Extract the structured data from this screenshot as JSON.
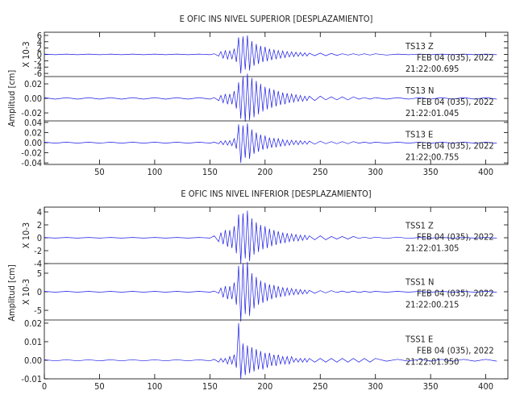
{
  "chart_data": [
    {
      "type": "line",
      "title": "E OFIC INS NIVEL SUPERIOR [DESPLAZAMIENTO]",
      "ylabel": "Amplitud [cm]",
      "color": "#1a1ae6",
      "x": [
        0,
        10,
        20,
        30,
        40,
        50,
        60,
        70,
        80,
        90,
        100,
        110,
        120,
        130,
        140,
        150,
        154,
        158,
        160,
        162,
        164,
        166,
        168,
        170,
        172,
        174,
        176,
        178,
        180,
        182,
        184,
        186,
        188,
        190,
        192,
        194,
        196,
        198,
        200,
        202,
        204,
        206,
        208,
        210,
        212,
        214,
        216,
        218,
        220,
        222,
        224,
        226,
        228,
        230,
        232,
        234,
        236,
        238,
        240,
        245,
        250,
        255,
        260,
        265,
        270,
        275,
        280,
        285,
        290,
        295,
        300,
        310,
        320,
        330,
        340,
        350,
        360,
        370,
        380,
        390,
        400,
        410
      ],
      "xlim": [
        0,
        420
      ],
      "xticks": [
        50,
        100,
        150,
        200,
        250,
        300,
        350,
        400
      ],
      "panels": [
        {
          "station": "TS13   Z",
          "date": "FEB 04 (035), 2022",
          "time": "21:22:00.695",
          "scale": "X 10-3",
          "ylim": [
            -7,
            7
          ],
          "yticks": [
            6,
            4,
            2,
            0,
            -2,
            -4,
            -6
          ],
          "values": [
            0.1,
            -0.1,
            0.1,
            -0.1,
            0.1,
            -0.1,
            0.1,
            -0.1,
            0.1,
            -0.1,
            0.1,
            -0.1,
            0.1,
            -0.1,
            0.1,
            -0.1,
            0.2,
            -0.5,
            0.9,
            -1.2,
            1.2,
            -1.5,
            1.2,
            -1.5,
            1.8,
            -2.4,
            5.4,
            -6,
            5.7,
            -4.8,
            6,
            -5.1,
            4.2,
            -3.6,
            3.3,
            -3,
            2.7,
            -2.4,
            2.4,
            -2.1,
            1.8,
            -1.8,
            1.5,
            -1.5,
            1.2,
            -1.2,
            1.1,
            -1,
            0.9,
            -0.8,
            0.8,
            -0.7,
            0.7,
            -0.6,
            0.6,
            -0.5,
            0.5,
            -0.5,
            0.4,
            -0.4,
            0.4,
            -0.4,
            0.3,
            -0.3,
            0.2,
            -0.2,
            0.2,
            -0.2,
            0.2,
            -0.2,
            0.2,
            -0.2,
            0.1,
            -0.1,
            0.1,
            -0.1,
            0.1,
            -0.1,
            0.1,
            -0.1,
            0.1,
            -0.1
          ]
        },
        {
          "station": "TS13   N",
          "date": "FEB 04 (035), 2022",
          "time": "21:22:01.045",
          "ylim": [
            -0.031,
            0.03
          ],
          "yticks": [
            0.02,
            {
              "value": 0,
              "label": "0.00"
            },
            -0.02
          ],
          "values": [
            0.001,
            -0.001,
            0.001,
            -0.001,
            0.001,
            -0.001,
            0.001,
            -0.001,
            0.001,
            -0.001,
            0.001,
            -0.001,
            0.001,
            -0.001,
            0.001,
            -0.001,
            0.001,
            -0.003,
            0.004,
            -0.006,
            0.006,
            -0.008,
            0.006,
            -0.008,
            0.01,
            -0.014,
            0.022,
            -0.028,
            0.03,
            -0.032,
            0.034,
            -0.03,
            0.028,
            -0.026,
            0.024,
            -0.022,
            0.02,
            -0.018,
            0.016,
            -0.015,
            0.014,
            -0.013,
            0.012,
            -0.011,
            0.01,
            -0.009,
            0.008,
            -0.008,
            0.007,
            -0.006,
            0.006,
            -0.005,
            0.005,
            -0.004,
            0.004,
            -0.004,
            0.003,
            -0.003,
            0.003,
            -0.003,
            0.003,
            -0.002,
            0.002,
            -0.002,
            0.002,
            -0.002,
            0.002,
            -0.001,
            0.001,
            -0.001,
            0.001,
            -0.001,
            0.001,
            -0.001,
            0.001,
            -0.001,
            0.001,
            -0.001,
            0.001,
            -0.001,
            0.001,
            -0.001
          ]
        },
        {
          "station": "TS13   E",
          "date": "FEB 04 (035), 2022",
          "time": "21:22:00.755",
          "ylim": [
            -0.043,
            0.043
          ],
          "yticks": [
            0.04,
            0.02,
            {
              "value": 0,
              "label": "0.00"
            },
            -0.02,
            -0.04
          ],
          "values": [
            0.001,
            -0.001,
            0.001,
            -0.001,
            0.001,
            -0.001,
            0.001,
            -0.001,
            0.001,
            -0.001,
            0.001,
            -0.001,
            0.001,
            -0.001,
            0.001,
            -0.001,
            0.001,
            -0.002,
            0.003,
            -0.004,
            0.004,
            -0.005,
            0.004,
            -0.006,
            0.008,
            -0.012,
            0.036,
            -0.04,
            0.034,
            -0.03,
            0.038,
            -0.032,
            0.026,
            -0.022,
            0.02,
            -0.018,
            0.016,
            -0.014,
            0.014,
            -0.012,
            0.01,
            -0.01,
            0.009,
            -0.009,
            0.008,
            -0.007,
            0.006,
            -0.006,
            0.005,
            -0.005,
            0.005,
            -0.004,
            0.004,
            -0.004,
            0.004,
            -0.003,
            0.003,
            -0.003,
            0.003,
            -0.003,
            0.003,
            -0.002,
            0.002,
            -0.002,
            0.002,
            -0.002,
            0.002,
            -0.001,
            0.001,
            -0.001,
            0.001,
            -0.001,
            0.001,
            -0.001,
            0.001,
            -0.001,
            0.001,
            -0.001,
            0.001,
            -0.001,
            0.001,
            -0.001
          ]
        }
      ]
    },
    {
      "type": "line",
      "title": "E OFIC INS NIVEL INFERIOR [DESPLAZAMIENTO]",
      "ylabel": "Amplitud [cm]",
      "color": "#1a1ae6",
      "x": [
        0,
        10,
        20,
        30,
        40,
        50,
        60,
        70,
        80,
        90,
        100,
        110,
        120,
        130,
        140,
        150,
        154,
        158,
        160,
        162,
        164,
        166,
        168,
        170,
        172,
        174,
        176,
        178,
        180,
        182,
        184,
        186,
        188,
        190,
        192,
        194,
        196,
        198,
        200,
        202,
        204,
        206,
        208,
        210,
        212,
        214,
        216,
        218,
        220,
        222,
        224,
        226,
        228,
        230,
        232,
        234,
        236,
        238,
        240,
        245,
        250,
        255,
        260,
        265,
        270,
        275,
        280,
        285,
        290,
        295,
        300,
        310,
        320,
        330,
        340,
        350,
        360,
        370,
        380,
        390,
        400,
        410
      ],
      "xlim": [
        0,
        420
      ],
      "xticks": [
        0,
        50,
        100,
        150,
        200,
        250,
        300,
        350,
        400
      ],
      "panels": [
        {
          "station": "TSS1   Z",
          "date": "FEB 04 (035), 2022",
          "time": "21:22:01.305",
          "scale": "X 10-3",
          "ylim": [
            -4,
            4.75
          ],
          "yticks": [
            4,
            2,
            0,
            -2,
            -4
          ],
          "values": [
            0.05,
            -0.05,
            0.05,
            -0.05,
            0.05,
            -0.05,
            0.05,
            -0.05,
            0.05,
            -0.05,
            0.05,
            -0.05,
            0.05,
            -0.05,
            0.05,
            -0.05,
            0.3,
            -0.6,
            0.8,
            -1,
            1.2,
            -1.4,
            1.2,
            -1.6,
            1.8,
            -2.4,
            3.6,
            -4,
            3.8,
            -3.2,
            4.2,
            -3.6,
            3,
            -2.6,
            2.4,
            -2.2,
            2,
            -1.8,
            1.8,
            -1.6,
            1.4,
            -1.3,
            1.2,
            -1.1,
            1,
            -0.9,
            0.8,
            -0.8,
            0.7,
            -0.6,
            0.6,
            -0.5,
            0.5,
            -0.5,
            0.4,
            -0.4,
            0.4,
            -0.3,
            0.3,
            -0.3,
            0.3,
            -0.3,
            0.2,
            -0.2,
            0.2,
            -0.2,
            0.2,
            -0.1,
            0.1,
            -0.1,
            0.1,
            -0.1,
            0.1,
            -0.1,
            0.05,
            -0.05,
            0.05,
            -0.05,
            0.05,
            -0.05,
            0.05,
            -0.05
          ]
        },
        {
          "station": "TSS1   N",
          "date": "FEB 04 (035), 2022",
          "time": "21:22:00.215",
          "scale": "X 10-3",
          "ylim": [
            -7.6,
            7.6
          ],
          "yticks": [
            5,
            0,
            -5
          ],
          "values": [
            0.1,
            -0.1,
            0.1,
            -0.1,
            0.1,
            -0.1,
            0.1,
            -0.1,
            0.1,
            -0.1,
            0.1,
            -0.1,
            0.1,
            -0.1,
            0.1,
            -0.1,
            0.2,
            -0.4,
            1,
            -1.5,
            1.5,
            -2,
            1.5,
            -2,
            2.5,
            -3.5,
            7,
            -8,
            7.5,
            -6,
            8,
            -6.5,
            5,
            -4.5,
            4,
            -3.5,
            3,
            -3,
            2.5,
            -2.5,
            2,
            -2,
            1.8,
            -1.6,
            1.5,
            -1.4,
            1.2,
            -1.1,
            1,
            -0.9,
            0.9,
            -0.8,
            0.7,
            -0.7,
            0.6,
            -0.6,
            0.5,
            -0.5,
            0.4,
            -0.4,
            0.3,
            -0.3,
            0.3,
            -0.2,
            0.2,
            -0.2,
            0.2,
            -0.2,
            0.1,
            -0.1,
            0.1,
            -0.1,
            0.1,
            -0.1,
            0.1,
            -0.1,
            0.1,
            -0.1,
            0.1,
            -0.1,
            0.1,
            -0.1
          ]
        },
        {
          "station": "TSS1   E",
          "date": "FEB 04 (035), 2022",
          "time": "21:22:01.950",
          "ylim": [
            -0.01,
            0.0217
          ],
          "yticks": [
            0.02,
            0.01,
            {
              "value": 0,
              "label": "0.00"
            },
            -0.01
          ],
          "values": [
            0.0003,
            -0.0003,
            0.0003,
            -0.0003,
            0.0003,
            -0.0003,
            0.0003,
            -0.0003,
            0.0003,
            -0.0003,
            0.0003,
            -0.0003,
            0.0003,
            -0.0003,
            0.0003,
            -0.0003,
            0.0005,
            -0.001,
            0.001,
            -0.001,
            0.001,
            -0.002,
            0.002,
            -0.002,
            0.003,
            -0.004,
            0.02,
            -0.01,
            0.009,
            -0.008,
            0.008,
            -0.007,
            0.007,
            -0.006,
            0.006,
            -0.005,
            0.005,
            -0.005,
            0.004,
            -0.004,
            0.004,
            -0.003,
            0.003,
            -0.003,
            0.003,
            -0.002,
            0.002,
            -0.002,
            0.002,
            -0.002,
            0.002,
            -0.001,
            0.001,
            -0.001,
            0.001,
            -0.001,
            0.001,
            -0.001,
            0.001,
            -0.001,
            0.001,
            -0.001,
            0.001,
            -0.001,
            0.001,
            -0.001,
            0.001,
            -0.001,
            0.001,
            -0.001,
            0.001,
            -0.0005,
            0.0005,
            -0.0005,
            0.0005,
            -0.0005,
            0.0005,
            -0.0005,
            0.0005,
            -0.0005,
            0.0005,
            -0.0005
          ]
        }
      ]
    }
  ]
}
